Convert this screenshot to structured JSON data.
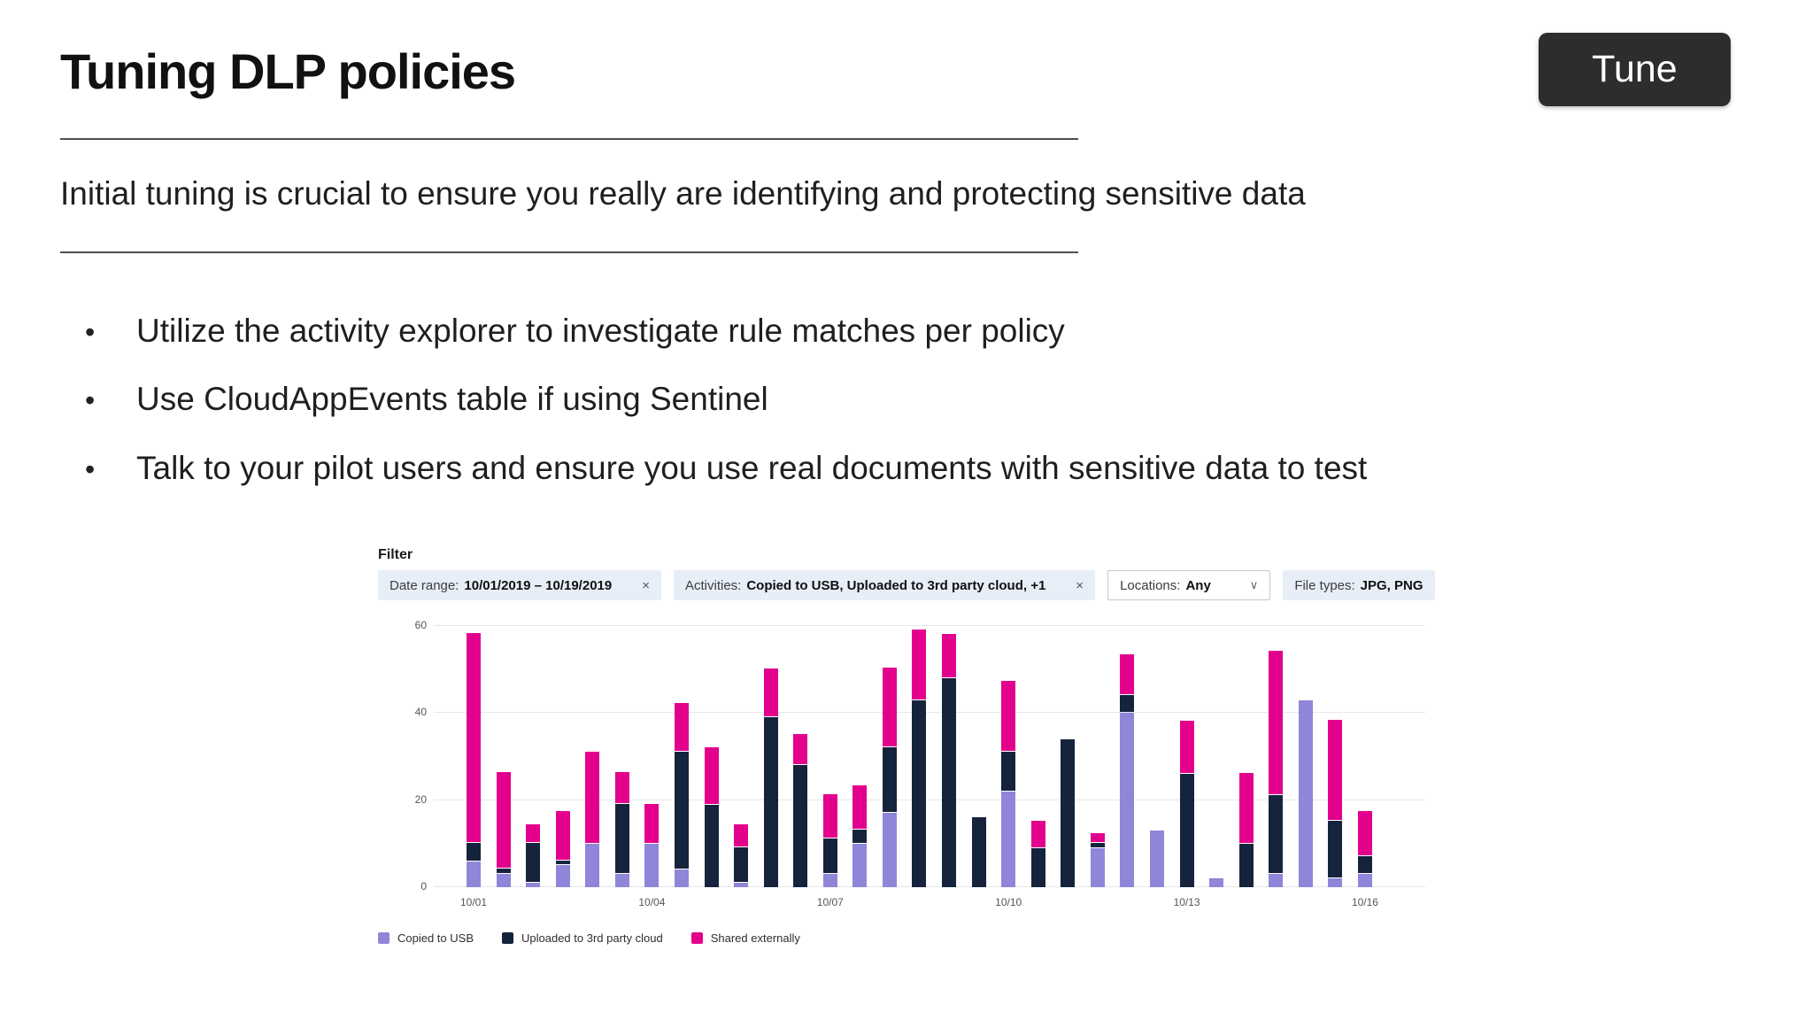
{
  "slide": {
    "title": "Tuning DLP policies",
    "subtitle": "Initial tuning is crucial to ensure you really are identifying and protecting sensitive data",
    "bullets": [
      "Utilize the activity explorer to investigate rule matches per policy",
      "Use CloudAppEvents table if using Sentinel",
      "Talk to your pilot users and ensure you use real documents with sensitive data to test"
    ],
    "tune_button_label": "Tune"
  },
  "filter": {
    "label": "Filter",
    "chips": [
      {
        "prefix": "Date range:",
        "value": "10/01/2019 – 10/19/2019",
        "close": true,
        "style": "blue"
      },
      {
        "prefix": "Activities:",
        "value": "Copied to USB, Uploaded to 3rd party cloud, +1",
        "close": true,
        "style": "blue"
      },
      {
        "prefix": "Locations:",
        "value": "Any",
        "dropdown": true,
        "style": "white"
      },
      {
        "prefix": "File types:",
        "value": "JPG, PNG",
        "style": "blue"
      }
    ]
  },
  "chart_data": {
    "type": "bar",
    "stacked": true,
    "title": "",
    "xlabel": "",
    "ylabel": "",
    "ylim": [
      0,
      60
    ],
    "yticks": [
      0,
      20,
      40,
      60
    ],
    "grid": true,
    "legend_position": "bottom",
    "bar_count": 31,
    "x_ticks": [
      {
        "index": 0,
        "label": "10/01"
      },
      {
        "index": 6,
        "label": "10/04"
      },
      {
        "index": 12,
        "label": "10/07"
      },
      {
        "index": 18,
        "label": "10/10"
      },
      {
        "index": 24,
        "label": "10/13"
      },
      {
        "index": 30,
        "label": "10/16"
      }
    ],
    "series": [
      {
        "name": "Copied to USB",
        "color": "#8f86d9",
        "values": [
          6,
          3,
          1,
          5,
          10,
          3,
          10,
          4,
          0,
          1,
          0,
          0,
          3,
          10,
          17,
          0,
          0,
          0,
          22,
          0,
          0,
          9,
          40,
          13,
          0,
          2,
          0,
          3,
          43,
          2,
          3
        ]
      },
      {
        "name": "Uploaded to 3rd party cloud",
        "color": "#16233d",
        "values": [
          4,
          1,
          9,
          1,
          0,
          16,
          0,
          27,
          19,
          8,
          39,
          28,
          8,
          3,
          15,
          43,
          48,
          16,
          9,
          9,
          34,
          1,
          4,
          0,
          26,
          0,
          10,
          18,
          0,
          13,
          4
        ]
      },
      {
        "name": "Shared externally",
        "color": "#e3008c",
        "values": [
          48,
          22,
          4,
          11,
          21,
          7,
          9,
          11,
          13,
          5,
          11,
          7,
          10,
          10,
          18,
          16,
          10,
          0,
          16,
          6,
          0,
          2,
          9,
          0,
          12,
          0,
          16,
          33,
          0,
          23,
          10
        ]
      }
    ]
  },
  "colors": {
    "accent_pink": "#e3008c",
    "accent_navy": "#16233d",
    "accent_purple": "#8f86d9",
    "chip_bg": "#e7eef8",
    "button_bg": "#2d2d2d",
    "gridline": "#e7e7e7"
  }
}
